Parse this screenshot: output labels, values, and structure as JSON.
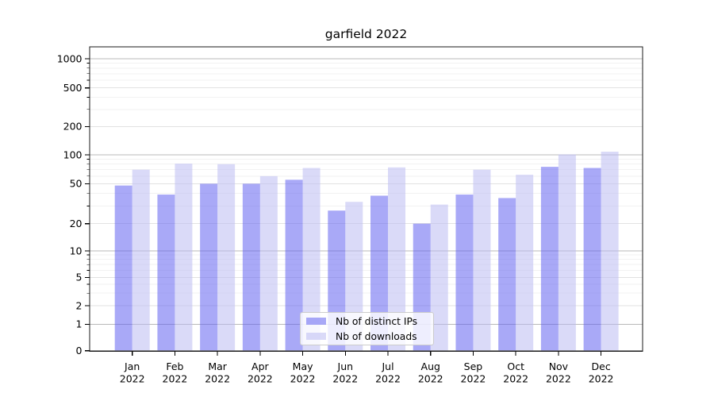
{
  "title": "garfield 2022",
  "chart_data": {
    "type": "bar",
    "title": "garfield 2022",
    "categories": [
      "Jan",
      "Feb",
      "Mar",
      "Apr",
      "May",
      "Jun",
      "Jul",
      "Aug",
      "Sep",
      "Oct",
      "Nov",
      "Dec"
    ],
    "x_axis_year": "2022",
    "series": [
      {
        "name": "Nb of distinct IPs",
        "color": "rgba(99,99,240,0.55)",
        "values": [
          48,
          39,
          50,
          50,
          55,
          27,
          38,
          20,
          39,
          36,
          75,
          73
        ]
      },
      {
        "name": "Nb of downloads",
        "color": "rgba(187,187,243,0.55)",
        "values": [
          70,
          81,
          80,
          60,
          73,
          33,
          74,
          31,
          70,
          62,
          101,
          108
        ]
      }
    ],
    "yscale": "symlog",
    "y_ticks": [
      0,
      1,
      2,
      5,
      10,
      20,
      50,
      100,
      200,
      500,
      1000
    ],
    "ylim": [
      0,
      1260
    ],
    "grid": "both",
    "legend_position": "lower center",
    "colors": {
      "decade_grid": "#b9b9b9",
      "labeled_sub_grid": "#e2e2e2",
      "minor_grid": "#f2f2f2",
      "spine": "#1a1a1a",
      "text": "#000000"
    }
  }
}
